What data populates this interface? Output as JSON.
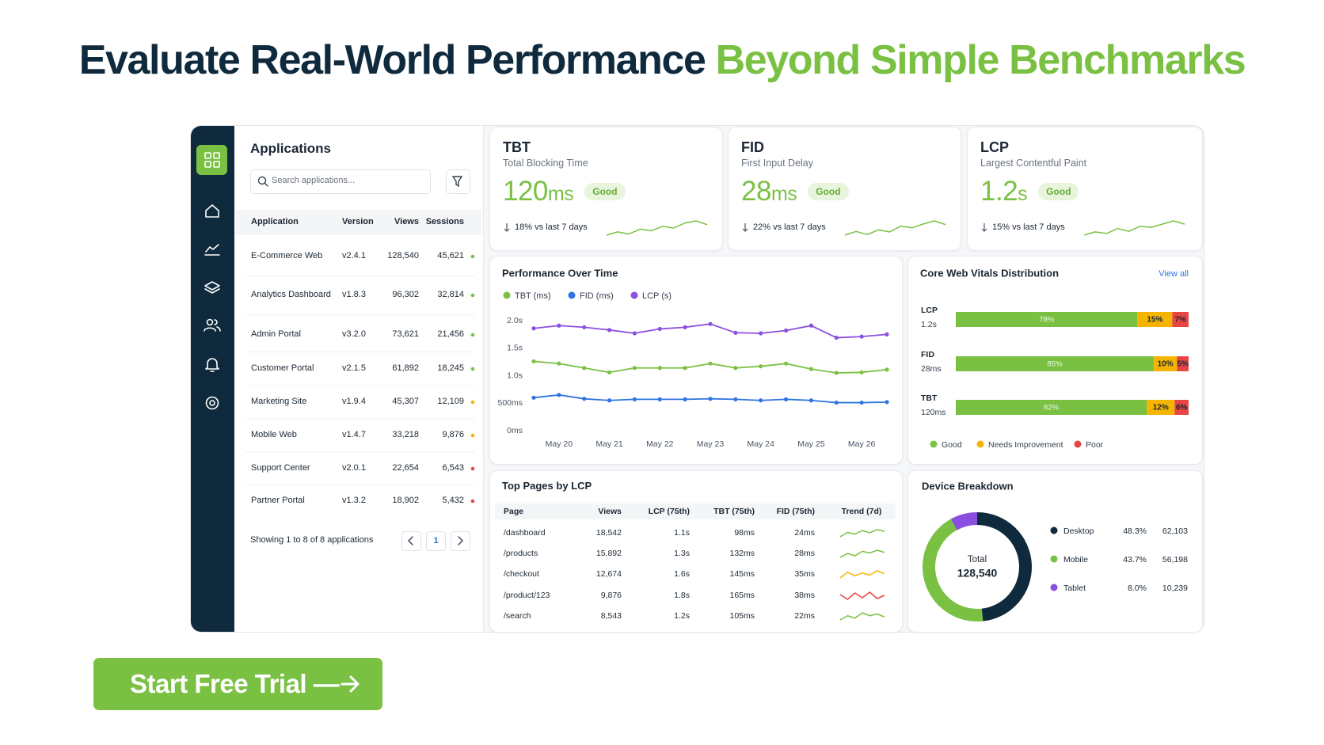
{
  "header": {
    "title": "Evaluate Real-World Performance",
    "title_highlight": "Beyond Simple Benchmarks"
  },
  "applications": {
    "title": "Applications",
    "search_placeholder": "Search applications...",
    "columns": [
      "Application",
      "Version",
      "Views",
      "Sessions"
    ],
    "rows": [
      [
        "E-Commerce Web",
        "v2.4.1",
        "128,540",
        "45,621"
      ],
      [
        "Analytics Dashboard",
        "v1.8.3",
        "96,302",
        "32,814"
      ],
      [
        "Admin Portal",
        "v3.2.0",
        "73,621",
        "21,456"
      ],
      [
        "Customer Portal",
        "v2.1.5",
        "61,892",
        "18,245"
      ],
      [
        "Marketing Site",
        "v1.9.4",
        "45,307",
        "12,109"
      ],
      [
        "Mobile Web",
        "v1.4.7",
        "33,218",
        "9,876"
      ],
      [
        "Support Center",
        "v2.0.1",
        "22,654",
        "6,543"
      ],
      [
        "Partner Portal",
        "v1.3.2",
        "18,902",
        "5,432"
      ]
    ],
    "status_colors": [
      "#7ac143",
      "#7ac143",
      "#7ac143",
      "#7ac143",
      "#f5b400",
      "#f5b400",
      "#e84545",
      "#e84545"
    ],
    "footer": "Showing 1 to 8 of 8 applications",
    "page": "1"
  },
  "metrics": [
    {
      "code": "TBT",
      "name": "Total Blocking Time",
      "value": 120,
      "unit": "ms",
      "badge": "Good",
      "change": "18% vs last 7 days",
      "color": "#7ac143",
      "trend": [
        2,
        2.6,
        2.2,
        3.1,
        2.8,
        3.6,
        3.3,
        4.2,
        4.6,
        3.9
      ]
    },
    {
      "code": "FID",
      "name": "First Input Delay",
      "value": 28,
      "unit": "ms",
      "badge": "Good",
      "change": "22% vs last 7 days",
      "color": "#7ac143",
      "trend": [
        2,
        2.7,
        2.1,
        3,
        2.6,
        3.7,
        3.4,
        4.1,
        4.7,
        4
      ]
    },
    {
      "code": "LCP",
      "name": "Largest Contentful Paint",
      "value": 1.2,
      "unit": "s",
      "badge": "Good",
      "change": "15% vs last 7 days",
      "color": "#7ac143",
      "trend": [
        2,
        2.6,
        2.3,
        3.2,
        2.7,
        3.6,
        3.4,
        4,
        4.6,
        4
      ]
    }
  ],
  "chart_data": [
    {
      "type": "line",
      "title": "Performance Over Time",
      "categories": [
        null,
        "May 20",
        null,
        "May 21",
        null,
        "May 22",
        null,
        "May 23",
        null,
        "May 24",
        null,
        "May 25",
        null,
        "May 26",
        null
      ],
      "series": [
        {
          "name": "TBT (ms)",
          "color": "#7ac143",
          "values": [
            1.26,
            1.22,
            1.14,
            1.06,
            1.14,
            1.14,
            1.14,
            1.22,
            1.14,
            1.17,
            1.22,
            1.12,
            1.05,
            1.06,
            1.11
          ]
        },
        {
          "name": "FID (ms)",
          "color": "#2f74e0",
          "values": [
            0.6,
            0.65,
            0.58,
            0.55,
            0.57,
            0.57,
            0.57,
            0.58,
            0.57,
            0.55,
            0.57,
            0.55,
            0.51,
            0.51,
            0.52
          ]
        },
        {
          "name": "LCP (s)",
          "color": "#8b4fe0",
          "values": [
            1.86,
            1.91,
            1.88,
            1.83,
            1.77,
            1.85,
            1.88,
            1.94,
            1.78,
            1.77,
            1.82,
            1.91,
            1.69,
            1.71,
            1.75
          ]
        }
      ],
      "ylim": [
        0,
        2
      ],
      "yticks": [
        {
          "value": 0,
          "label": "0ms"
        },
        {
          "value": 0.5,
          "label": "500ms"
        },
        {
          "value": 1,
          "label": "1.0s"
        },
        {
          "value": 1.5,
          "label": "1.5s"
        },
        {
          "value": 2,
          "label": "2.0s"
        }
      ]
    },
    {
      "type": "stacked_bar",
      "orientation": "horizontal",
      "title": "Core Web Vitals Distribution",
      "link": "View all",
      "categories": [
        "LCP",
        "FID",
        "TBT"
      ],
      "category_values": [
        "1.2s",
        "28ms",
        "120ms"
      ],
      "series": [
        {
          "name": "Good",
          "color": "#7ac143",
          "values": [
            78,
            85,
            82
          ],
          "value_labels": [
            "78%",
            "85%",
            "82%"
          ]
        },
        {
          "name": "Needs Improvement",
          "color": "#f5b400",
          "values": [
            15,
            10,
            12
          ],
          "value_labels": [
            "15%",
            "10%",
            "12%"
          ]
        },
        {
          "name": "Poor",
          "color": "#e84545",
          "values": [
            7,
            5,
            6
          ],
          "value_labels": [
            "7%",
            "5%",
            "6%"
          ]
        }
      ],
      "xlim": [
        0,
        100
      ]
    },
    {
      "type": "donut",
      "title": "Device Breakdown",
      "center_label": "Total",
      "center_value": "128,540",
      "categories": [
        "Desktop",
        "Mobile",
        "Tablet"
      ],
      "colors": [
        "#0f2a3d",
        "#7ac143",
        "#8b4fe0"
      ],
      "values": [
        48.3,
        43.7,
        8
      ],
      "value_labels": [
        "48.3%",
        "43.7%",
        "8.0%"
      ],
      "counts": [
        "62,103",
        "56,198",
        "10,239"
      ]
    }
  ],
  "top_pages": {
    "title": "Top Pages by LCP",
    "columns": [
      "Page",
      "Views",
      "LCP (75th)",
      "TBT (75th)",
      "FID (75th)",
      "Trend (7d)"
    ],
    "rows": [
      [
        "/dashboard",
        "18,542",
        "1.1s",
        "98ms",
        "24ms"
      ],
      [
        "/products",
        "15,892",
        "1.3s",
        "132ms",
        "28ms"
      ],
      [
        "/checkout",
        "12,674",
        "1.6s",
        "145ms",
        "35ms"
      ],
      [
        "/product/123",
        "9,876",
        "1.8s",
        "165ms",
        "38ms"
      ],
      [
        "/search",
        "8,543",
        "1.2s",
        "105ms",
        "22ms"
      ]
    ],
    "trend_colors": [
      "#7ac143",
      "#7ac143",
      "#f5b400",
      "#e84545",
      "#7ac143"
    ],
    "trends": [
      [
        2,
        3,
        2.6,
        3.4,
        2.9,
        3.6,
        3.2
      ],
      [
        2.2,
        2.9,
        2.5,
        3.3,
        3,
        3.5,
        3.1
      ],
      [
        2.4,
        3.2,
        2.7,
        3.1,
        2.8,
        3.4,
        3
      ],
      [
        3,
        2.4,
        3.2,
        2.6,
        3.3,
        2.5,
        2.9
      ],
      [
        2.3,
        3,
        2.6,
        3.5,
        3,
        3.3,
        2.8
      ]
    ]
  },
  "cta": {
    "label": "Start Free Trial —"
  }
}
